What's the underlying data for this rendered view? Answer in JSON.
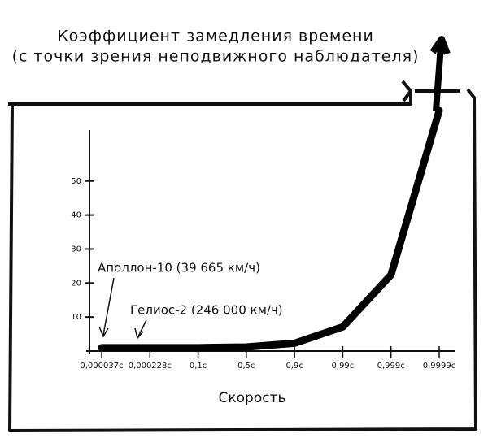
{
  "chart_data": {
    "type": "line",
    "title": "Коэффициент замедления времени",
    "subtitle": "(с точки зрения неподвижного наблюдателя)",
    "x_label": "Скорость",
    "categories": [
      "0,000037c",
      "0,000228c",
      "0,1c",
      "0,5c",
      "0,9c",
      "0,99c",
      "0,999c",
      "0,9999c"
    ],
    "values": [
      1,
      1,
      1,
      1.2,
      2.3,
      7.1,
      22.4,
      70.7
    ],
    "color": "#000000",
    "ylim": [
      0,
      65
    ],
    "yticks": [
      10,
      20,
      30,
      40,
      50
    ],
    "annotations": [
      "Аполлон-10 (39 665 км/ч)",
      "Гелиос-2 (246 000 км/ч)"
    ]
  }
}
